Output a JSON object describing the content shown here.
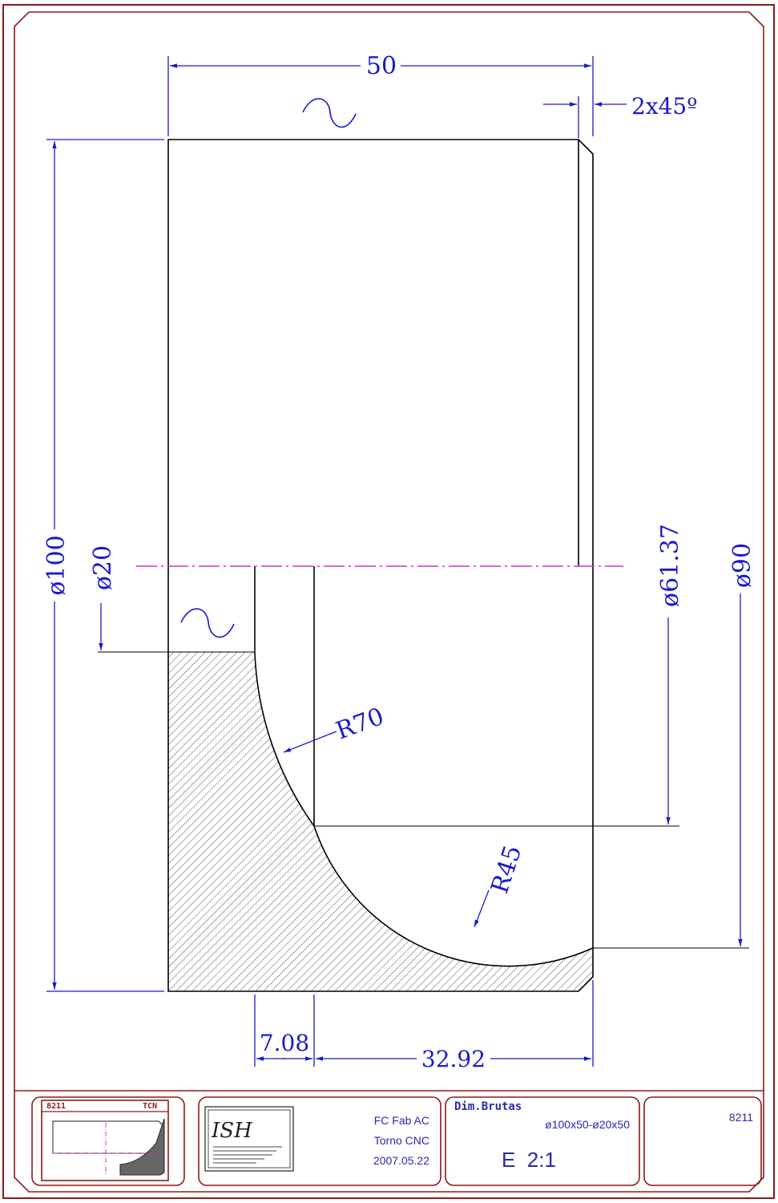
{
  "drawing": {
    "dimensions": {
      "overall_length": "50",
      "chamfer": "2x45º",
      "dia_outer": "ø100",
      "dia_bore": "ø20",
      "dia_mid": "ø61.37",
      "dia_face": "ø90",
      "radius_large": "R70",
      "radius_small": "R45",
      "offset_small": "7.08",
      "offset_large": "32.92"
    },
    "finish_symbol": "~"
  },
  "title_block": {
    "thumb_left_code": "8211",
    "thumb_right_code": "TCN",
    "course_line1": "FC Fab AC",
    "course_line2": "Torno CNC",
    "date": "2007.05.22",
    "raw_dims_label": "Dim.Brutas",
    "raw_dims_value": "ø100x50-ø20x50",
    "scale": "E  2:1",
    "part_number": "8211"
  },
  "colors": {
    "frame": "#8b1a1a",
    "part": "#000000",
    "dimension": "#1a1acc",
    "centerline": "#cc33cc",
    "hatch": "#555555"
  }
}
